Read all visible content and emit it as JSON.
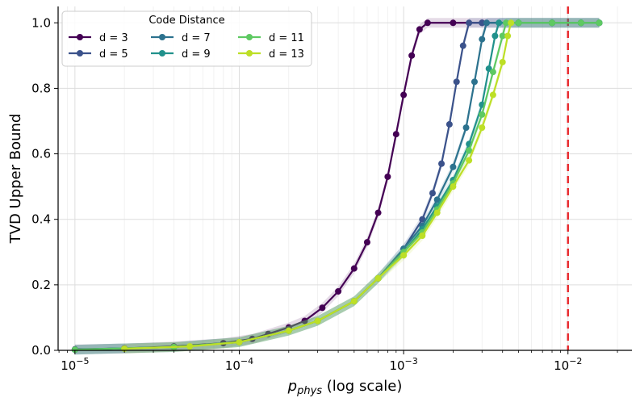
{
  "chart_data": {
    "type": "line",
    "xscale": "log",
    "xlim": [
      7.9e-06,
      0.0245
    ],
    "ylim": [
      0,
      1.05
    ],
    "ylabel": "TVD Upper Bound",
    "xlabel_var": "p",
    "xlabel_sub": "phys",
    "xlabel_suffix": " (log scale)",
    "legend_title": "Code Distance",
    "grid": true,
    "threshold_line": {
      "x": 0.01,
      "color": "#e8262b",
      "style": "dashed"
    },
    "x_ticks": [
      {
        "value": 1e-05,
        "base": "10",
        "exp": "−5"
      },
      {
        "value": 0.0001,
        "base": "10",
        "exp": "−4"
      },
      {
        "value": 0.001,
        "base": "10",
        "exp": "−3"
      },
      {
        "value": 0.01,
        "base": "10",
        "exp": "−2"
      }
    ],
    "y_ticks": [
      {
        "value": 0.0,
        "label": "0.0"
      },
      {
        "value": 0.2,
        "label": "0.2"
      },
      {
        "value": 0.4,
        "label": "0.4"
      },
      {
        "value": 0.6,
        "label": "0.6"
      },
      {
        "value": 0.8,
        "label": "0.8"
      },
      {
        "value": 1.0,
        "label": "1.0"
      }
    ],
    "series": [
      {
        "name": "d = 3",
        "color": "#440154",
        "points": [
          [
            1e-05,
            0.003
          ],
          [
            2e-05,
            0.006
          ],
          [
            4e-05,
            0.012
          ],
          [
            8e-05,
            0.022
          ],
          [
            0.00012,
            0.035
          ],
          [
            0.00015,
            0.05
          ],
          [
            0.0002,
            0.07
          ],
          [
            0.00025,
            0.09
          ],
          [
            0.00032,
            0.13
          ],
          [
            0.0004,
            0.18
          ],
          [
            0.0005,
            0.25
          ],
          [
            0.0006,
            0.33
          ],
          [
            0.0007,
            0.42
          ],
          [
            0.0008,
            0.53
          ],
          [
            0.0009,
            0.66
          ],
          [
            0.001,
            0.78
          ],
          [
            0.00112,
            0.9
          ],
          [
            0.00125,
            0.98
          ],
          [
            0.0014,
            1.0
          ],
          [
            0.002,
            1.0
          ],
          [
            0.003,
            1.0
          ],
          [
            0.005,
            1.0
          ],
          [
            0.008,
            1.0
          ],
          [
            0.012,
            1.0
          ],
          [
            0.0155,
            1.0
          ]
        ]
      },
      {
        "name": "d = 5",
        "color": "#3b528b",
        "points": [
          [
            1e-05,
            0.002
          ],
          [
            4e-05,
            0.01
          ],
          [
            0.0001,
            0.025
          ],
          [
            0.0002,
            0.06
          ],
          [
            0.0003,
            0.09
          ],
          [
            0.0005,
            0.15
          ],
          [
            0.0007,
            0.22
          ],
          [
            0.001,
            0.31
          ],
          [
            0.0013,
            0.4
          ],
          [
            0.0015,
            0.48
          ],
          [
            0.0017,
            0.57
          ],
          [
            0.0019,
            0.69
          ],
          [
            0.0021,
            0.82
          ],
          [
            0.0023,
            0.93
          ],
          [
            0.0025,
            1.0
          ],
          [
            0.003,
            1.0
          ],
          [
            0.005,
            1.0
          ],
          [
            0.008,
            1.0
          ],
          [
            0.012,
            1.0
          ],
          [
            0.0155,
            1.0
          ]
        ]
      },
      {
        "name": "d = 7",
        "color": "#2c728e",
        "points": [
          [
            1e-05,
            0.002
          ],
          [
            4e-05,
            0.01
          ],
          [
            0.0001,
            0.025
          ],
          [
            0.0002,
            0.06
          ],
          [
            0.0003,
            0.09
          ],
          [
            0.0005,
            0.15
          ],
          [
            0.0007,
            0.22
          ],
          [
            0.001,
            0.31
          ],
          [
            0.0013,
            0.38
          ],
          [
            0.0016,
            0.46
          ],
          [
            0.002,
            0.56
          ],
          [
            0.0024,
            0.68
          ],
          [
            0.0027,
            0.82
          ],
          [
            0.003,
            0.95
          ],
          [
            0.0032,
            1.0
          ],
          [
            0.005,
            1.0
          ],
          [
            0.008,
            1.0
          ],
          [
            0.012,
            1.0
          ],
          [
            0.0155,
            1.0
          ]
        ]
      },
      {
        "name": "d = 9",
        "color": "#21918c",
        "points": [
          [
            1e-05,
            0.002
          ],
          [
            4e-05,
            0.01
          ],
          [
            0.0001,
            0.025
          ],
          [
            0.0002,
            0.06
          ],
          [
            0.0003,
            0.09
          ],
          [
            0.0005,
            0.15
          ],
          [
            0.0007,
            0.22
          ],
          [
            0.001,
            0.3
          ],
          [
            0.0013,
            0.37
          ],
          [
            0.0016,
            0.44
          ],
          [
            0.002,
            0.52
          ],
          [
            0.0025,
            0.63
          ],
          [
            0.003,
            0.75
          ],
          [
            0.0033,
            0.86
          ],
          [
            0.0036,
            0.96
          ],
          [
            0.0038,
            1.0
          ],
          [
            0.005,
            1.0
          ],
          [
            0.008,
            1.0
          ],
          [
            0.012,
            1.0
          ],
          [
            0.0155,
            1.0
          ]
        ]
      },
      {
        "name": "d = 11",
        "color": "#5ec962",
        "points": [
          [
            1e-05,
            0.002
          ],
          [
            4e-05,
            0.01
          ],
          [
            0.0001,
            0.025
          ],
          [
            0.0002,
            0.06
          ],
          [
            0.0003,
            0.09
          ],
          [
            0.0005,
            0.15
          ],
          [
            0.0007,
            0.22
          ],
          [
            0.001,
            0.3
          ],
          [
            0.0013,
            0.36
          ],
          [
            0.0016,
            0.43
          ],
          [
            0.002,
            0.51
          ],
          [
            0.0025,
            0.61
          ],
          [
            0.003,
            0.72
          ],
          [
            0.0035,
            0.85
          ],
          [
            0.004,
            0.96
          ],
          [
            0.0042,
            1.0
          ],
          [
            0.005,
            1.0
          ],
          [
            0.008,
            1.0
          ],
          [
            0.012,
            1.0
          ],
          [
            0.0155,
            1.0
          ]
        ]
      },
      {
        "name": "d = 13",
        "color": "#bddf26",
        "points": [
          [
            2e-05,
            0.005
          ],
          [
            5e-05,
            0.012
          ],
          [
            0.0001,
            0.025
          ],
          [
            0.0002,
            0.06
          ],
          [
            0.0003,
            0.09
          ],
          [
            0.0005,
            0.15
          ],
          [
            0.0007,
            0.22
          ],
          [
            0.001,
            0.29
          ],
          [
            0.0013,
            0.35
          ],
          [
            0.0016,
            0.42
          ],
          [
            0.002,
            0.5
          ],
          [
            0.0025,
            0.58
          ],
          [
            0.003,
            0.68
          ],
          [
            0.0035,
            0.78
          ],
          [
            0.004,
            0.88
          ],
          [
            0.0043,
            0.96
          ],
          [
            0.0045,
            1.0
          ]
        ]
      }
    ]
  }
}
